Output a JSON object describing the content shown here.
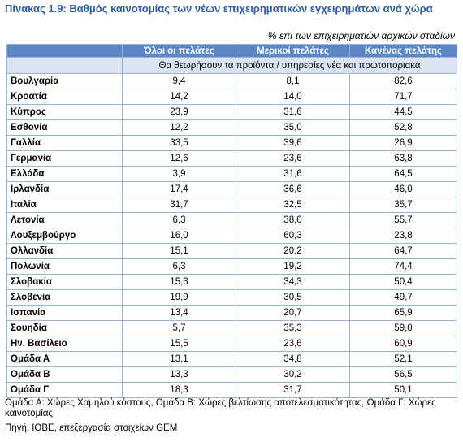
{
  "header": {
    "title": "Πίνακας 1.9: Βαθμός καινοτομίας των νέων επιχειρηματικών εγχειρημάτων ανά χώρα",
    "subtitle": "% επί των επιχειρηματιών αρχικών σταδίων"
  },
  "table": {
    "columns": [
      "",
      "Όλοι οι πελάτες",
      "Μερικοί πελάτες",
      "Κανένας πελάτης"
    ],
    "subheader": "Θα θεωρήσουν τα προϊόντα / υπηρεσίες νέα και πρωτοποριακά",
    "rows": [
      [
        "Βουλγαρία",
        "9,4",
        "8,1",
        "82,6"
      ],
      [
        "Κροατία",
        "14,2",
        "14,0",
        "71,7"
      ],
      [
        "Κύπρος",
        "23,9",
        "31,6",
        "44,5"
      ],
      [
        "Εσθονία",
        "12,2",
        "35,0",
        "52,8"
      ],
      [
        "Γαλλία",
        "33,5",
        "39,6",
        "26,9"
      ],
      [
        "Γερμανία",
        "12,6",
        "23,6",
        "63,8"
      ],
      [
        "Ελλάδα",
        "3,9",
        "31,6",
        "64,5"
      ],
      [
        "Ιρλανδία",
        "17,4",
        "36,6",
        "46,0"
      ],
      [
        "Ιταλία",
        "31,7",
        "32,5",
        "35,7"
      ],
      [
        "Λετονία",
        "6,3",
        "38,0",
        "55,7"
      ],
      [
        "Λουξεμβούργο",
        "16,0",
        "60,3",
        "23,8"
      ],
      [
        "Ολλανδία",
        "15,1",
        "20,2",
        "64,7"
      ],
      [
        "Πολωνία",
        "6,3",
        "19,2",
        "74,4"
      ],
      [
        "Σλοβακία",
        "15,3",
        "34,3",
        "50,4"
      ],
      [
        "Σλοβενία",
        "19,9",
        "30,5",
        "49,7"
      ],
      [
        "Ισπανία",
        "13,4",
        "20,7",
        "65,9"
      ],
      [
        "Σουηδία",
        "5,7",
        "35,3",
        "59,0"
      ],
      [
        "Ην. Βασίλειο",
        "15,5",
        "23,6",
        "60,9"
      ],
      [
        "Ομάδα Α",
        "13,1",
        "34,8",
        "52,1"
      ],
      [
        "Ομάδα Β",
        "13,3",
        "30,2",
        "56,5"
      ],
      [
        "Ομάδα Γ",
        "18,3",
        "31,7",
        "50,1"
      ]
    ]
  },
  "footer": {
    "note": "Ομάδα Α: Χώρες Χαμηλού κόστους, Ομάδα Β: Χώρες βελτίωσης αποτελεσματικότητας, Ομάδα Γ: Χώρες καινοτομίας",
    "source": "Πηγή: ΙΟΒΕ, επεξεργασία στοιχείων GEM"
  }
}
